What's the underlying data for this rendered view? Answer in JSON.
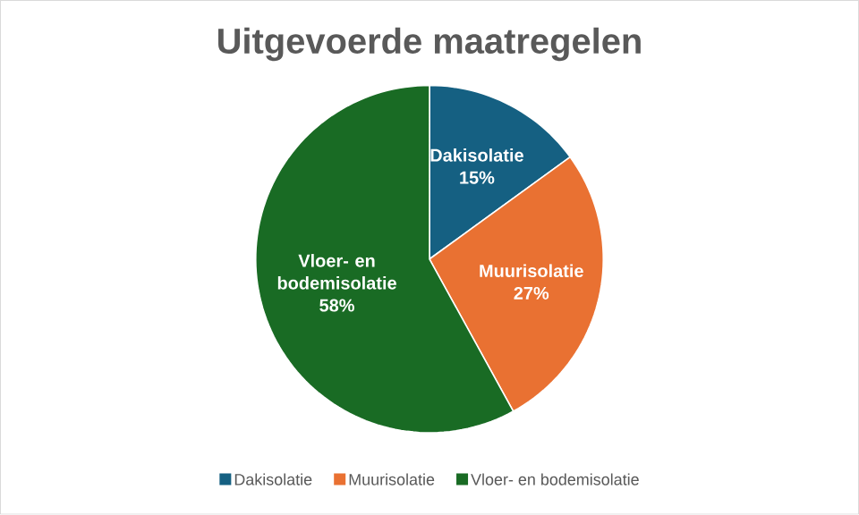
{
  "chart_data": {
    "type": "pie",
    "title": "Uitgevoerde maatregelen",
    "categories": [
      "Dakisolatie",
      "Muurisolatie",
      "Vloer- en bodemisolatie"
    ],
    "values": [
      15,
      27,
      58
    ],
    "value_labels": [
      "15%",
      "27%",
      "58%"
    ],
    "colors": [
      "#156082",
      "#e97132",
      "#196b24"
    ],
    "legend": "bottom"
  }
}
